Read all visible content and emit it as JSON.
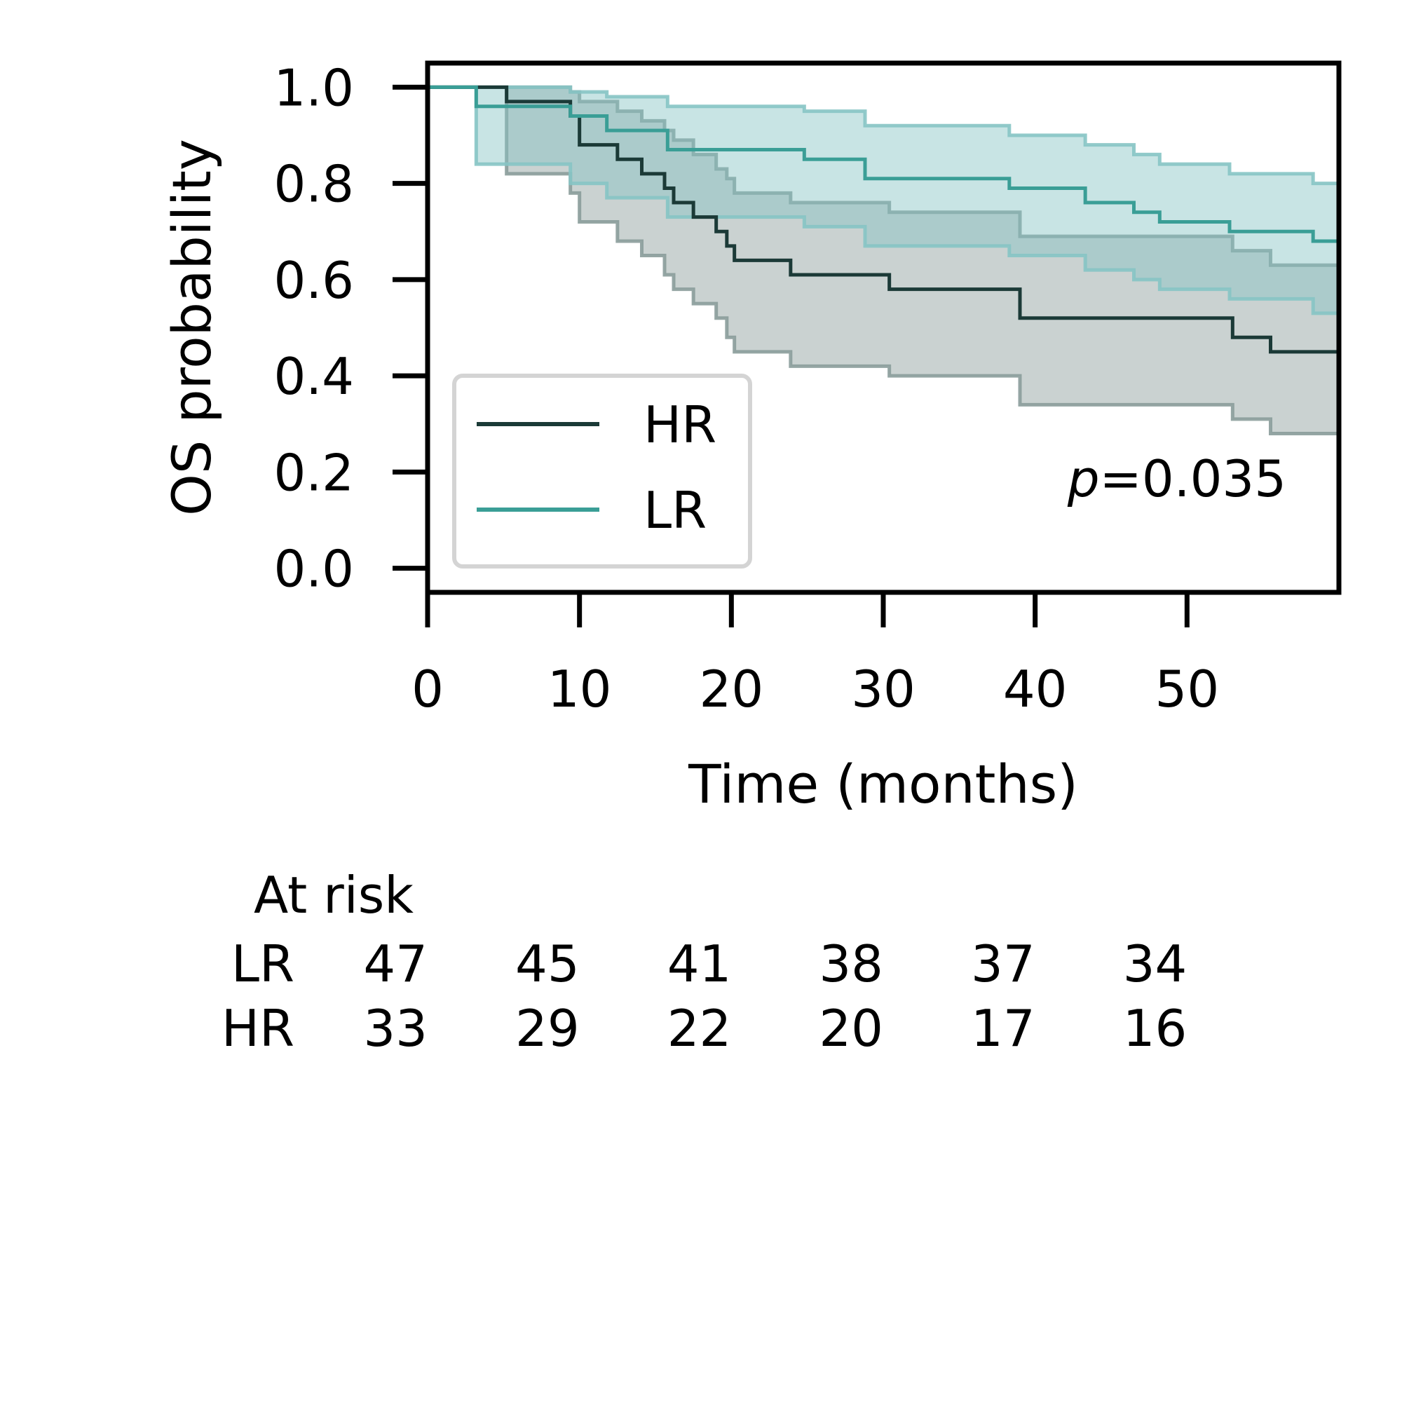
{
  "chart_data": {
    "type": "line",
    "subtype": "kaplan-meier",
    "xlabel": "Time (months)",
    "ylabel": "OS probability",
    "xlim": [
      0,
      60
    ],
    "ylim": [
      -0.05,
      1.05
    ],
    "xticks": [
      0,
      10,
      20,
      30,
      40,
      50
    ],
    "xtick_labels": [
      "0",
      "10",
      "20",
      "30",
      "40",
      "50"
    ],
    "yticks": [
      0.0,
      0.2,
      0.4,
      0.6,
      0.8,
      1.0
    ],
    "ytick_labels": [
      "0.0",
      "0.2",
      "0.4",
      "0.6",
      "0.8",
      "1.0"
    ],
    "legend_position": "lower-left",
    "p_value": {
      "prefix": "p",
      "text": "=0.035"
    },
    "series": [
      {
        "name": "HR",
        "color": "#1b3a37",
        "band_color": "#8a9c9a",
        "x": [
          0,
          5.2,
          9.4,
          10.0,
          12.5,
          14.1,
          15.6,
          16.2,
          17.5,
          19.0,
          19.7,
          20.2,
          23.9,
          30.4,
          39.0,
          53.0,
          55.5,
          60
        ],
        "y": [
          1.0,
          0.97,
          0.94,
          0.88,
          0.85,
          0.82,
          0.79,
          0.76,
          0.73,
          0.7,
          0.67,
          0.64,
          0.61,
          0.58,
          0.52,
          0.48,
          0.45,
          0.45
        ],
        "lower": [
          1.0,
          0.82,
          0.78,
          0.72,
          0.68,
          0.65,
          0.61,
          0.58,
          0.55,
          0.52,
          0.48,
          0.45,
          0.42,
          0.4,
          0.34,
          0.31,
          0.28,
          0.28
        ],
        "upper": [
          1.0,
          1.0,
          0.99,
          0.97,
          0.95,
          0.93,
          0.91,
          0.89,
          0.86,
          0.83,
          0.81,
          0.78,
          0.76,
          0.74,
          0.69,
          0.66,
          0.63,
          0.63
        ]
      },
      {
        "name": "LR",
        "color": "#3a9e96",
        "band_color": "#86c4c4",
        "x": [
          0,
          3.2,
          9.4,
          11.8,
          15.8,
          24.8,
          28.8,
          38.3,
          43.3,
          46.5,
          48.2,
          52.8,
          58.3,
          60
        ],
        "y": [
          1.0,
          0.96,
          0.94,
          0.91,
          0.87,
          0.85,
          0.81,
          0.79,
          0.76,
          0.74,
          0.72,
          0.7,
          0.68,
          0.68
        ],
        "lower": [
          1.0,
          0.84,
          0.8,
          0.77,
          0.73,
          0.71,
          0.67,
          0.65,
          0.62,
          0.6,
          0.58,
          0.56,
          0.53,
          0.53
        ],
        "upper": [
          1.0,
          1.0,
          0.99,
          0.98,
          0.96,
          0.95,
          0.92,
          0.9,
          0.88,
          0.86,
          0.84,
          0.82,
          0.8,
          0.8
        ]
      }
    ],
    "at_risk": {
      "title": "At risk",
      "times": [
        0,
        10,
        20,
        30,
        40,
        50
      ],
      "rows": [
        {
          "label": "LR",
          "counts": [
            "47",
            "45",
            "41",
            "38",
            "37",
            "34"
          ]
        },
        {
          "label": "HR",
          "counts": [
            "33",
            "29",
            "22",
            "20",
            "17",
            "16"
          ]
        }
      ]
    }
  }
}
